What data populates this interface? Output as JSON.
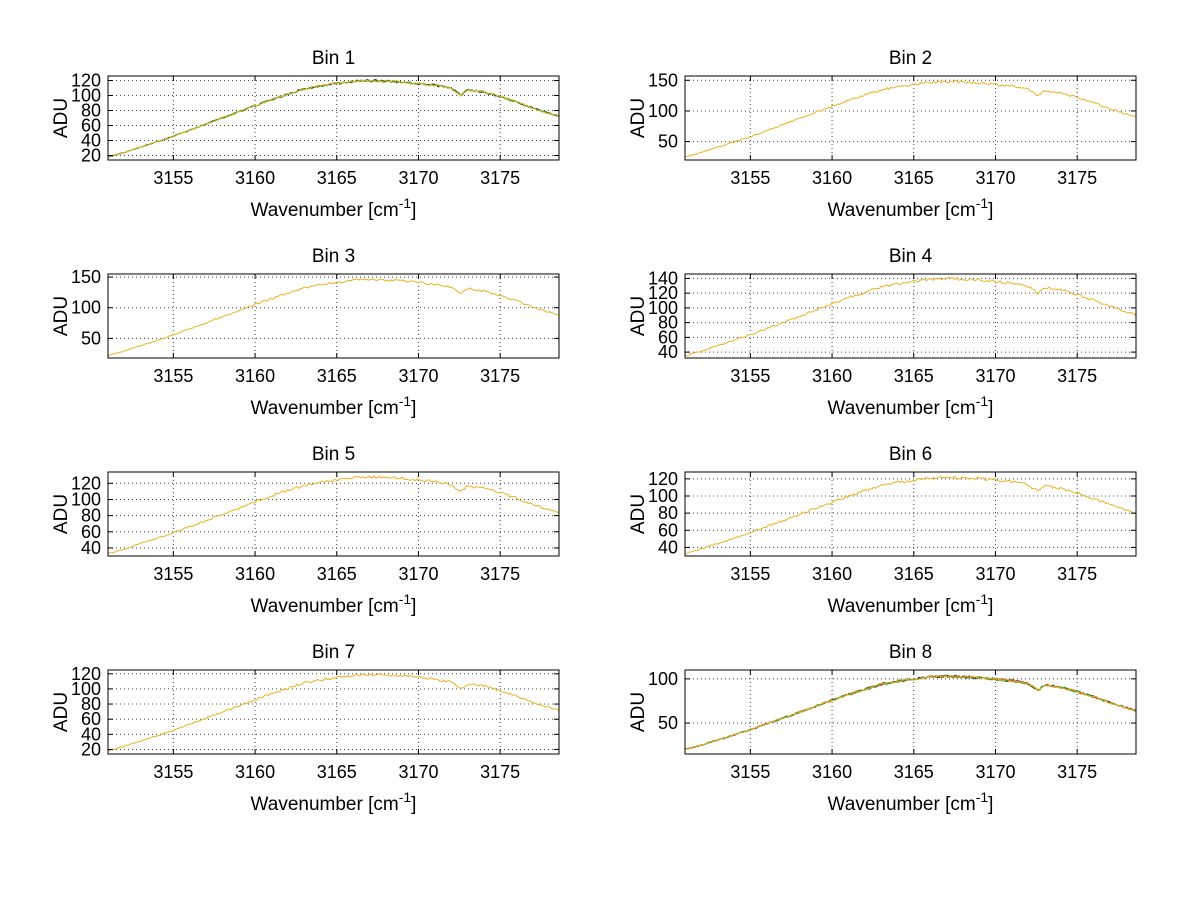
{
  "figure": {
    "background": "#ffffff"
  },
  "chart_data": {
    "type": "line",
    "layout": "4x2 grid of subplots",
    "xlabel": "Wavenumber [cm⁻¹]",
    "ylabel": "ADU",
    "xticks": [
      3155,
      3160,
      3165,
      3170,
      3175
    ],
    "xlim": [
      3151,
      3178.6
    ],
    "grid": "dotted",
    "line_colors": {
      "yellow": "#edb120",
      "green": "#22aa22",
      "red": "#cc2222",
      "dark": "#222222"
    },
    "x": [
      3151,
      3152,
      3153,
      3154,
      3155,
      3156,
      3157,
      3158,
      3159,
      3160,
      3161,
      3162,
      3163,
      3164,
      3165,
      3166,
      3167,
      3168,
      3169,
      3170,
      3171,
      3172,
      3172.6,
      3173,
      3174,
      3175,
      3176,
      3177,
      3178,
      3178.6
    ],
    "charts": [
      {
        "title": "Bin 1",
        "yticks": [
          20,
          40,
          60,
          80,
          100,
          120
        ],
        "ylim": [
          14,
          126
        ],
        "series": [
          {
            "name": "trace-dark",
            "color": "#222222",
            "values": [
              18,
              24.1,
              31.3,
              38.4,
              45.5,
              53.7,
              61.9,
              70,
              78.2,
              86.3,
              94.5,
              101.6,
              108.8,
              112.9,
              115.9,
              119,
              120,
              119,
              118,
              115.9,
              113.9,
              109.8,
              100.6,
              107.8,
              104.7,
              98.6,
              91.4,
              83.3,
              76.1,
              72.1
            ]
          },
          {
            "name": "trace-green",
            "color": "#22aa22",
            "values": [
              18,
              24.1,
              31.3,
              38.4,
              45.5,
              53.7,
              61.9,
              70,
              78.2,
              86.3,
              94.5,
              101.6,
              108.8,
              112.9,
              115.9,
              119,
              120,
              119,
              118,
              115.9,
              113.9,
              109.8,
              100.6,
              107.8,
              104.7,
              98.6,
              91.4,
              83.3,
              76.1,
              72.1
            ]
          },
          {
            "name": "trace-yellow",
            "color": "#edb120",
            "values": [
              18,
              24.1,
              31.3,
              38.4,
              45.5,
              53.7,
              61.9,
              70,
              78.2,
              86.3,
              94.5,
              101.6,
              108.8,
              112.9,
              115.9,
              119,
              120,
              119,
              118,
              115.9,
              113.9,
              109.8,
              100.6,
              107.8,
              104.7,
              98.6,
              91.4,
              83.3,
              76.1,
              72.1
            ]
          }
        ]
      },
      {
        "title": "Bin 2",
        "yticks": [
          50,
          100,
          150
        ],
        "ylim": [
          20,
          157
        ],
        "series": [
          {
            "name": "trace-yellow",
            "color": "#edb120",
            "values": [
              25,
              32.4,
              41,
              49.6,
              58.2,
              68.1,
              77.9,
              87.7,
              97.6,
              107.4,
              117.3,
              125.9,
              134.5,
              139.4,
              143.1,
              146.8,
              148,
              146.8,
              145.5,
              143.1,
              140.6,
              135.7,
              124.6,
              133.2,
              129.6,
              122.2,
              113.6,
              103.7,
              95.1,
              90.2
            ]
          }
        ]
      },
      {
        "title": "Bin 3",
        "yticks": [
          50,
          100,
          150
        ],
        "ylim": [
          18,
          155
        ],
        "series": [
          {
            "name": "trace-yellow",
            "color": "#edb120",
            "values": [
              22,
              29.4,
              38.1,
              46.8,
              55.5,
              65.4,
              75.3,
              85.2,
              95.2,
              105.1,
              115,
              123.7,
              132.4,
              137.3,
              141,
              144.8,
              146,
              144.8,
              143.5,
              141,
              138.6,
              133.6,
              122.4,
              131.1,
              127.4,
              120,
              111.3,
              101.4,
              92.7,
              87.7
            ]
          }
        ]
      },
      {
        "title": "Bin 4",
        "yticks": [
          40,
          60,
          80,
          100,
          120,
          140
        ],
        "ylim": [
          32,
          146
        ],
        "series": [
          {
            "name": "trace-yellow",
            "color": "#edb120",
            "values": [
              35,
              41.3,
              48.7,
              56,
              63.4,
              71.8,
              80.2,
              88.6,
              97,
              105.4,
              113.8,
              121.1,
              128.5,
              132.7,
              135.8,
              138.9,
              140,
              138.9,
              137.9,
              135.8,
              133.7,
              129.5,
              120.1,
              127.4,
              124.3,
              118,
              110.6,
              102.2,
              94.9,
              90.7
            ]
          }
        ]
      },
      {
        "title": "Bin 5",
        "yticks": [
          40,
          60,
          80,
          100,
          120
        ],
        "ylim": [
          30,
          134
        ],
        "series": [
          {
            "name": "trace-yellow",
            "color": "#edb120",
            "values": [
              33,
              38.7,
              45.4,
              52,
              58.7,
              66.3,
              73.9,
              81.5,
              89.1,
              96.7,
              104.3,
              110.9,
              117.6,
              121.4,
              124.2,
              127.1,
              128,
              127.1,
              126.1,
              124.2,
              122.3,
              118.5,
              110,
              116.6,
              113.8,
              108.1,
              101.4,
              93.8,
              87.2,
              83.4
            ]
          }
        ]
      },
      {
        "title": "Bin 6",
        "yticks": [
          40,
          60,
          80,
          100,
          120
        ],
        "ylim": [
          30,
          128
        ],
        "series": [
          {
            "name": "trace-yellow",
            "color": "#edb120",
            "values": [
              33,
              38.3,
              44.6,
              50.8,
              57,
              64.2,
              71.3,
              78.4,
              85.5,
              92.6,
              99.8,
              106,
              112.2,
              115.8,
              118.4,
              121.1,
              122,
              121.1,
              120.2,
              118.4,
              116.7,
              113.1,
              105.1,
              111.3,
              108.7,
              103.3,
              97.1,
              90,
              83.7,
              80.2
            ]
          }
        ]
      },
      {
        "title": "Bin 7",
        "yticks": [
          20,
          40,
          60,
          80,
          100,
          120
        ],
        "ylim": [
          14,
          125
        ],
        "series": [
          {
            "name": "trace-yellow",
            "color": "#edb120",
            "values": [
              18,
              24.1,
              31.1,
              38.2,
              45.3,
              53.4,
              61.4,
              69.5,
              77.6,
              85.7,
              93.8,
              100.8,
              107.9,
              111.9,
              115,
              118,
              119,
              118,
              117,
              115,
              112.9,
              108.9,
              99.8,
              106.9,
              103.9,
              97.8,
              90.7,
              82.6,
              75.6,
              71.5
            ]
          }
        ]
      },
      {
        "title": "Bin 8",
        "yticks": [
          50,
          100
        ],
        "ylim": [
          15,
          110
        ],
        "series": [
          {
            "name": "trace-dark",
            "color": "#222222",
            "values": [
              20,
              25,
              30.8,
              36.6,
              42.4,
              49.1,
              55.7,
              62.3,
              69,
              75.6,
              82.3,
              88.1,
              93.9,
              97.2,
              99.7,
              102.2,
              103,
              102.2,
              101.3,
              99.7,
              98,
              94.7,
              87.2,
              93,
              90.6,
              85.6,
              79.8,
              73.1,
              67.3,
              64
            ]
          },
          {
            "name": "trace-red",
            "color": "#cc2222",
            "values": [
              20,
              25,
              30.8,
              36.6,
              42.4,
              49.1,
              55.7,
              62.3,
              69,
              75.6,
              82.3,
              88.1,
              93.9,
              97.2,
              99.7,
              102.2,
              103,
              102.2,
              101.3,
              99.7,
              98,
              94.7,
              87.2,
              93,
              90.6,
              85.6,
              79.8,
              73.1,
              67.3,
              64
            ]
          },
          {
            "name": "trace-green",
            "color": "#22aa22",
            "values": [
              20,
              25,
              30.8,
              36.6,
              42.4,
              49.1,
              55.7,
              62.3,
              69,
              75.6,
              82.3,
              88.1,
              93.9,
              97.2,
              99.7,
              102.2,
              103,
              102.2,
              101.3,
              99.7,
              98,
              94.7,
              87.2,
              93,
              90.6,
              85.6,
              79.8,
              73.1,
              67.3,
              64
            ]
          },
          {
            "name": "trace-yellow",
            "color": "#edb120",
            "values": [
              20,
              25,
              30.8,
              36.6,
              42.4,
              49.1,
              55.7,
              62.3,
              69,
              75.6,
              82.3,
              88.1,
              93.9,
              97.2,
              99.7,
              102.2,
              103,
              102.2,
              101.3,
              99.7,
              98,
              94.7,
              87.2,
              93,
              90.6,
              85.6,
              79.8,
              73.1,
              67.3,
              64
            ]
          }
        ]
      }
    ]
  }
}
